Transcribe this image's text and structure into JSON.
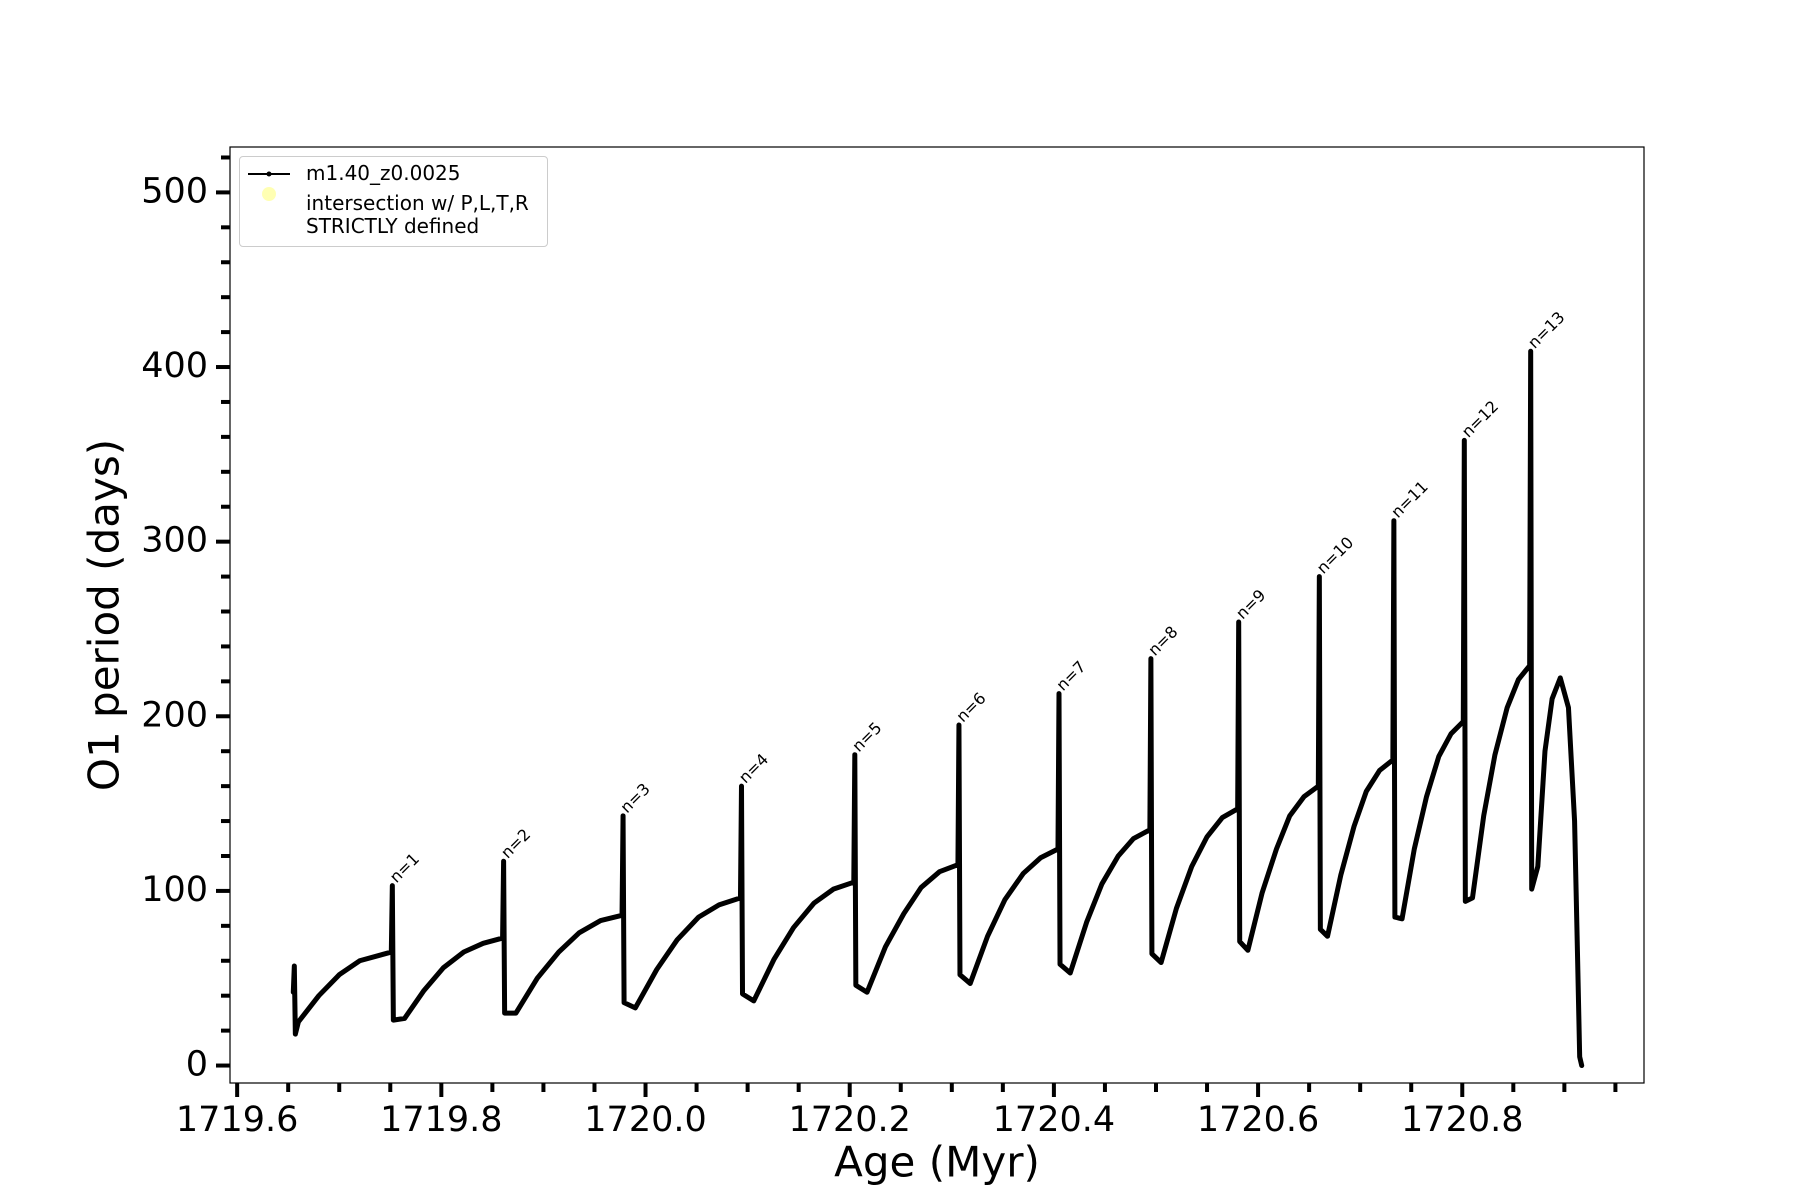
{
  "chart_data": {
    "type": "line",
    "xlabel": "Age (Myr)",
    "ylabel": "O1 period (days)",
    "xlim": [
      1719.593,
      1720.978
    ],
    "ylim": [
      -10,
      526
    ],
    "xticks": [
      1719.6,
      1719.8,
      {
        "value": 1720,
        "label": "1720.0"
      },
      1720.2,
      1720.4,
      1720.6,
      1720.8
    ],
    "xticks_minor": [
      1719.65,
      1719.7,
      1719.75,
      1719.85,
      1719.9,
      1719.95,
      1720.05,
      1720.1,
      1720.15,
      1720.25,
      1720.3,
      1720.35,
      1720.45,
      1720.5,
      1720.55,
      1720.65,
      1720.7,
      1720.75,
      1720.85,
      1720.9,
      1720.95
    ],
    "yticks": [
      0,
      100,
      200,
      300,
      400,
      500
    ],
    "yticks_minor": [
      20,
      40,
      60,
      80,
      120,
      140,
      160,
      180,
      220,
      240,
      260,
      280,
      320,
      340,
      360,
      380,
      420,
      440,
      460,
      480,
      520
    ],
    "grid": false,
    "legend": "upper left",
    "series": [
      {
        "name": "m1.40_z0.0025",
        "color": "#000000",
        "x": [
          1719.655,
          1719.656,
          1719.657,
          1719.66,
          1719.68,
          1719.7,
          1719.72,
          1719.751,
          1719.752,
          1719.753,
          1719.764,
          1719.783,
          1719.802,
          1719.822,
          1719.841,
          1719.86,
          1719.861,
          1719.862,
          1719.873,
          1719.894,
          1719.915,
          1719.935,
          1719.956,
          1719.977,
          1719.978,
          1719.979,
          1719.99,
          1720.011,
          1720.031,
          1720.052,
          1720.072,
          1720.093,
          1720.094,
          1720.095,
          1720.106,
          1720.126,
          1720.145,
          1720.165,
          1720.184,
          1720.204,
          1720.205,
          1720.206,
          1720.217,
          1720.235,
          1720.253,
          1720.27,
          1720.288,
          1720.306,
          1720.307,
          1720.308,
          1720.318,
          1720.335,
          1720.352,
          1720.37,
          1720.387,
          1720.404,
          1720.405,
          1720.406,
          1720.416,
          1720.432,
          1720.447,
          1720.463,
          1720.478,
          1720.494,
          1720.495,
          1720.496,
          1720.505,
          1720.52,
          1720.535,
          1720.55,
          1720.565,
          1720.58,
          1720.581,
          1720.582,
          1720.59,
          1720.604,
          1720.618,
          1720.631,
          1720.645,
          1720.659,
          1720.66,
          1720.661,
          1720.668,
          1720.681,
          1720.694,
          1720.706,
          1720.719,
          1720.732,
          1720.733,
          1720.734,
          1720.741,
          1720.753,
          1720.765,
          1720.777,
          1720.789,
          1720.801,
          1720.802,
          1720.803,
          1720.81,
          1720.821,
          1720.832,
          1720.844,
          1720.855,
          1720.866,
          1720.867,
          1720.868,
          1720.874,
          1720.881,
          1720.888,
          1720.896,
          1720.904,
          1720.91,
          1720.913,
          1720.915,
          1720.917
        ],
        "values": [
          42,
          57,
          18,
          25,
          40,
          52,
          60,
          65,
          103,
          26,
          27,
          43,
          56,
          65,
          70,
          73,
          117,
          30,
          30,
          50,
          65,
          76,
          83,
          86,
          143,
          36,
          33,
          55,
          72,
          85,
          92,
          96,
          160,
          41,
          37,
          61,
          79,
          93,
          101,
          105,
          178,
          46,
          42,
          68,
          87,
          102,
          111,
          115,
          195,
          52,
          47,
          74,
          95,
          110,
          119,
          124,
          213,
          58,
          53,
          82,
          104,
          120,
          130,
          135,
          233,
          64,
          59,
          90,
          114,
          131,
          142,
          147,
          254,
          71,
          66,
          99,
          124,
          143,
          154,
          160,
          280,
          78,
          74,
          109,
          137,
          157,
          169,
          175,
          312,
          85,
          84,
          124,
          154,
          177,
          190,
          197,
          358,
          94,
          96,
          143,
          178,
          205,
          221,
          229,
          409,
          101,
          114,
          180,
          210,
          222,
          205,
          140,
          60,
          5,
          0
        ]
      },
      {
        "name": "intersection w/ P,L,T,R\nSTRICTLY defined",
        "color": "#ffffb3",
        "type": "scatter",
        "x": [],
        "values": []
      }
    ],
    "annotations": [
      {
        "text": "n=1",
        "x": 1719.752,
        "y": 103
      },
      {
        "text": "n=2",
        "x": 1719.861,
        "y": 117
      },
      {
        "text": "n=3",
        "x": 1719.978,
        "y": 143
      },
      {
        "text": "n=4",
        "x": 1720.094,
        "y": 160
      },
      {
        "text": "n=5",
        "x": 1720.205,
        "y": 178
      },
      {
        "text": "n=6",
        "x": 1720.307,
        "y": 195
      },
      {
        "text": "n=7",
        "x": 1720.405,
        "y": 213
      },
      {
        "text": "n=8",
        "x": 1720.495,
        "y": 233
      },
      {
        "text": "n=9",
        "x": 1720.581,
        "y": 254
      },
      {
        "text": "n=10",
        "x": 1720.66,
        "y": 280
      },
      {
        "text": "n=11",
        "x": 1720.733,
        "y": 312
      },
      {
        "text": "n=12",
        "x": 1720.802,
        "y": 358
      },
      {
        "text": "n=13",
        "x": 1720.867,
        "y": 409
      }
    ]
  }
}
